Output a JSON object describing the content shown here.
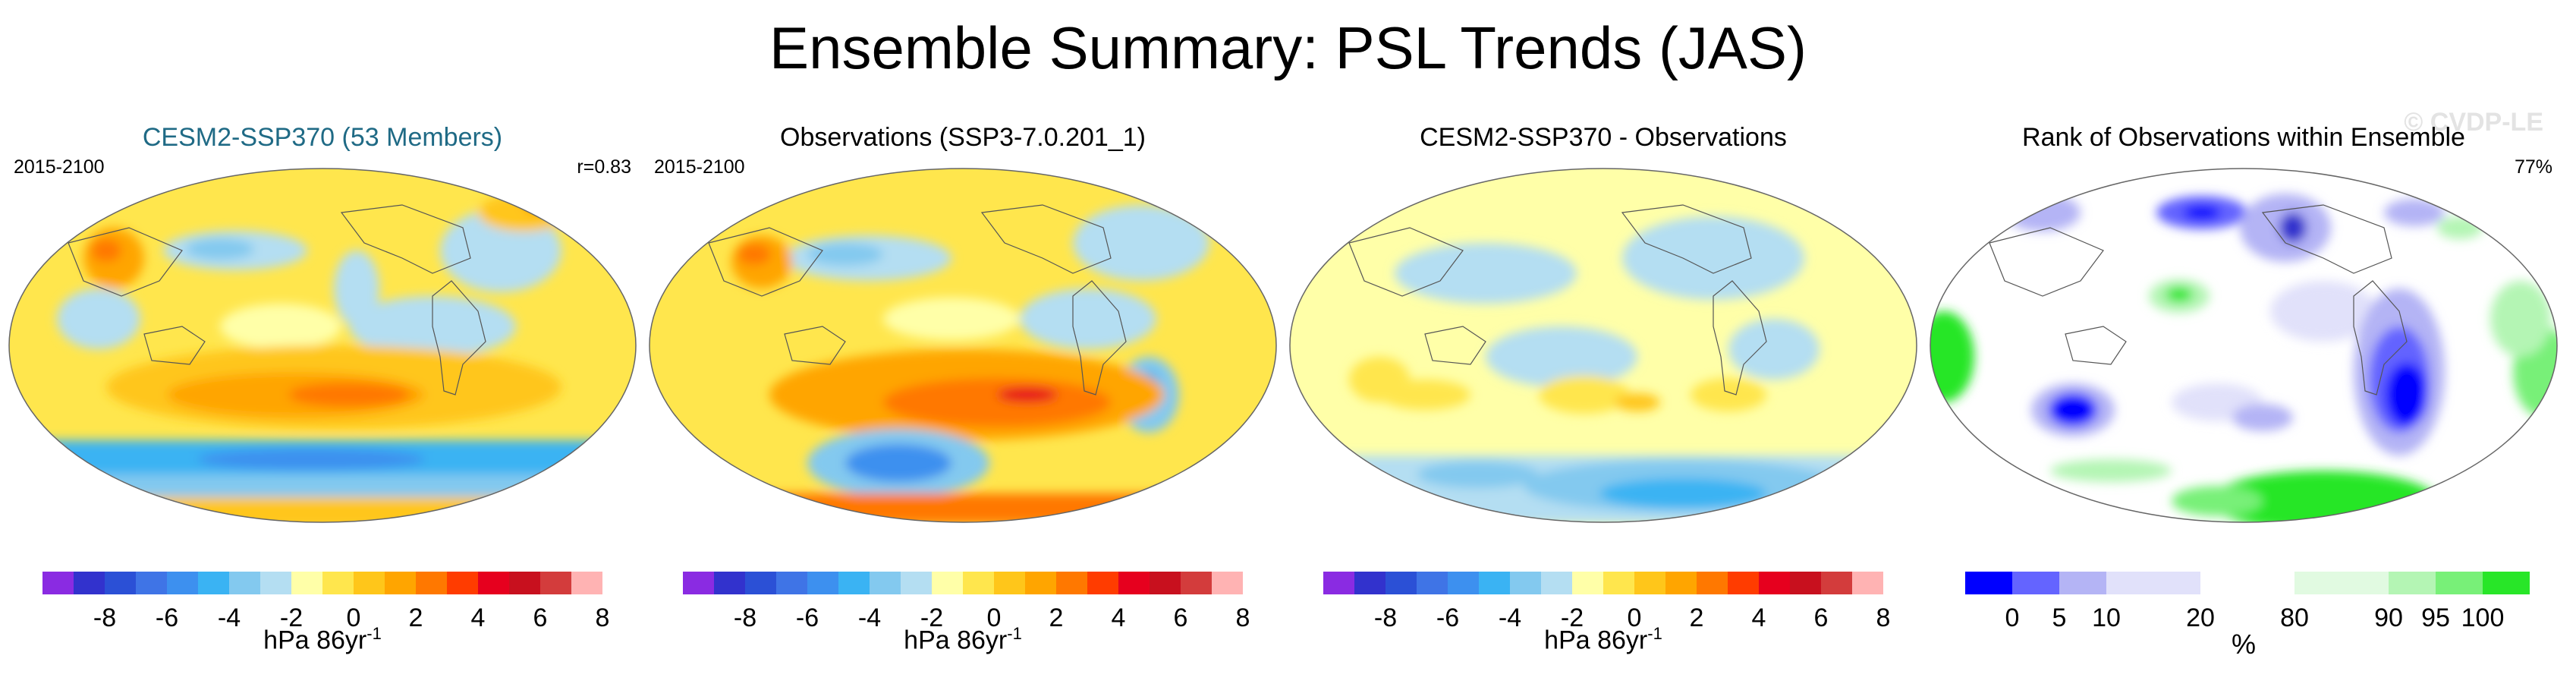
{
  "title": "Ensemble Summary: PSL Trends (JAS)",
  "watermark": "© CVDP-LE",
  "panels": [
    {
      "title": "CESM2-SSP370 (53 Members)",
      "period": "2015-2100",
      "stat": "r=0.83",
      "title_color": "#1f6a85"
    },
    {
      "title": "Observations (SSP3-7.0.201_1)",
      "period": "2015-2100",
      "stat": ""
    },
    {
      "title": "CESM2-SSP370 - Observations",
      "period": "",
      "stat": ""
    },
    {
      "title": "Rank of Observations within Ensemble",
      "period": "",
      "stat": "77%"
    }
  ],
  "colorbar": {
    "colors": [
      "#8a2be2",
      "#3232cd",
      "#2b50d6",
      "#3f74e6",
      "#3d90ef",
      "#3ab3f3",
      "#83c9ef",
      "#b4def2",
      "#ffffa8",
      "#ffe64d",
      "#ffc61a",
      "#ffa500",
      "#ff7800",
      "#ff3c00",
      "#e6001e",
      "#c8101e",
      "#d33c3c",
      "#ffb3b3"
    ],
    "ticks": [
      "-8",
      "-6",
      "-4",
      "-2",
      "0",
      "2",
      "4",
      "6",
      "8"
    ],
    "unit_main": "hPa 86yr",
    "unit_sup": "-1"
  },
  "rank_colorbar": {
    "colors": [
      "#0000ff",
      "#6464ff",
      "#b4b4f5",
      "#e1e1fa",
      "#ffffff",
      "#e1fae1",
      "#b4f5b4",
      "#78f078",
      "#28e628"
    ],
    "ticks": [
      "0",
      "5",
      "10",
      "20",
      "80",
      "90",
      "95",
      "100"
    ],
    "unit": "%"
  }
}
